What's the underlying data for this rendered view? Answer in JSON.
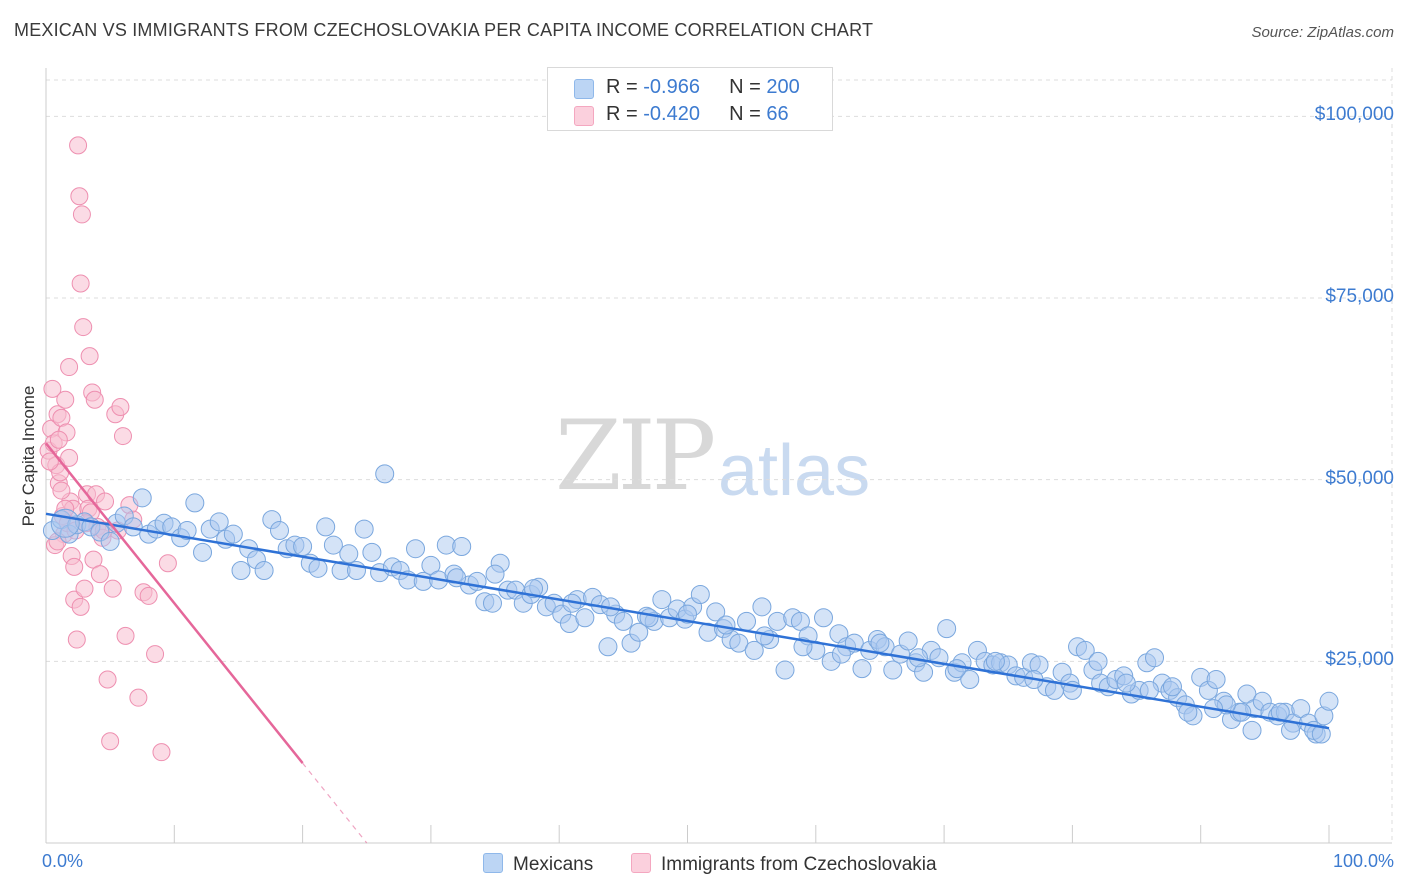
{
  "header": {
    "title": "MEXICAN VS IMMIGRANTS FROM CZECHOSLOVAKIA PER CAPITA INCOME CORRELATION CHART",
    "source": "Source: ZipAtlas.com"
  },
  "watermark": {
    "zip": "ZIP",
    "atlas": "atlas"
  },
  "legend": {
    "rows": [
      {
        "r_label": "R = ",
        "r_value": "-0.966",
        "n_label": "N = ",
        "n_value": "200",
        "color": "#8fb8ea"
      },
      {
        "r_label": "R = ",
        "r_value": "-0.420",
        "n_label": "N = ",
        "n_value": "66",
        "color": "#f4a7c0"
      }
    ]
  },
  "bottom_legend": {
    "mexicans": "Mexicans",
    "czech": "Immigrants from Czechoslovakia"
  },
  "colors": {
    "blue_fill": "#a9c8ef",
    "blue_stroke": "#7aa7de",
    "blue_line": "#2f72d6",
    "pink_fill": "#f7bdd0",
    "pink_stroke": "#ee8fb0",
    "pink_line": "#e5679a",
    "grid": "#dddddd",
    "tick_text": "#3d7bd0"
  },
  "chart_data": {
    "type": "scatter",
    "title": "MEXICAN VS IMMIGRANTS FROM CZECHOSLOVAKIA PER CAPITA INCOME CORRELATION CHART",
    "xlabel": "",
    "ylabel": "Per Capita Income",
    "xlim": [
      0,
      100
    ],
    "ylim": [
      0,
      105000
    ],
    "x_tick_labels": [
      "0.0%",
      "100.0%"
    ],
    "y_ticks": [
      25000,
      50000,
      75000,
      100000
    ],
    "y_tick_labels": [
      "$25,000",
      "$50,000",
      "$75,000",
      "$100,000"
    ],
    "grid": true,
    "series": [
      {
        "name": "Mexicans",
        "r": -0.966,
        "n": 200,
        "trend": {
          "x": [
            0,
            100
          ],
          "y": [
            45300,
            15800
          ]
        },
        "points": [
          [
            0.5,
            43000
          ],
          [
            1.2,
            44500
          ],
          [
            1.8,
            42500
          ],
          [
            2.4,
            43800
          ],
          [
            3.0,
            44200
          ],
          [
            3.5,
            43500
          ],
          [
            4.2,
            42800
          ],
          [
            5.0,
            41500
          ],
          [
            5.5,
            44000
          ],
          [
            6.1,
            45000
          ],
          [
            6.8,
            43500
          ],
          [
            7.5,
            47500
          ],
          [
            8.0,
            42500
          ],
          [
            8.6,
            43200
          ],
          [
            9.2,
            44000
          ],
          [
            9.8,
            43500
          ],
          [
            10.5,
            42000
          ],
          [
            11.0,
            43000
          ],
          [
            11.6,
            46800
          ],
          [
            12.2,
            40000
          ],
          [
            12.8,
            43200
          ],
          [
            13.5,
            44200
          ],
          [
            14.0,
            41800
          ],
          [
            14.6,
            42500
          ],
          [
            15.2,
            37500
          ],
          [
            15.8,
            40500
          ],
          [
            16.4,
            39000
          ],
          [
            17.0,
            37500
          ],
          [
            17.6,
            44500
          ],
          [
            18.2,
            43000
          ],
          [
            18.8,
            40500
          ],
          [
            19.4,
            41000
          ],
          [
            20.0,
            40800
          ],
          [
            20.6,
            38500
          ],
          [
            21.2,
            37800
          ],
          [
            21.8,
            43500
          ],
          [
            22.4,
            41000
          ],
          [
            23.0,
            37500
          ],
          [
            23.6,
            39800
          ],
          [
            24.2,
            37500
          ],
          [
            24.8,
            43200
          ],
          [
            25.4,
            40000
          ],
          [
            26.0,
            37200
          ],
          [
            26.4,
            50800
          ],
          [
            27.0,
            38000
          ],
          [
            27.6,
            37500
          ],
          [
            28.2,
            36200
          ],
          [
            28.8,
            40500
          ],
          [
            29.4,
            36000
          ],
          [
            30.0,
            38200
          ],
          [
            30.6,
            36200
          ],
          [
            31.2,
            41000
          ],
          [
            31.8,
            37000
          ],
          [
            32.4,
            40800
          ],
          [
            33.0,
            35500
          ],
          [
            33.6,
            36000
          ],
          [
            34.2,
            33200
          ],
          [
            34.8,
            33000
          ],
          [
            35.4,
            38500
          ],
          [
            36.0,
            34800
          ],
          [
            36.6,
            34800
          ],
          [
            37.2,
            33000
          ],
          [
            37.8,
            34200
          ],
          [
            38.4,
            35200
          ],
          [
            39.0,
            32500
          ],
          [
            39.6,
            33000
          ],
          [
            40.2,
            31500
          ],
          [
            40.8,
            30200
          ],
          [
            41.4,
            33500
          ],
          [
            42.0,
            31000
          ],
          [
            42.6,
            33800
          ],
          [
            43.2,
            32800
          ],
          [
            43.8,
            27000
          ],
          [
            44.4,
            31500
          ],
          [
            45.0,
            30500
          ],
          [
            45.6,
            27500
          ],
          [
            46.2,
            29000
          ],
          [
            46.8,
            31200
          ],
          [
            47.4,
            30500
          ],
          [
            48.0,
            33500
          ],
          [
            48.6,
            31000
          ],
          [
            49.2,
            32200
          ],
          [
            49.8,
            30800
          ],
          [
            50.4,
            32500
          ],
          [
            51.0,
            34200
          ],
          [
            51.6,
            29000
          ],
          [
            52.2,
            31800
          ],
          [
            52.8,
            29500
          ],
          [
            53.4,
            28000
          ],
          [
            54.0,
            27500
          ],
          [
            54.6,
            30500
          ],
          [
            55.2,
            26500
          ],
          [
            55.8,
            32500
          ],
          [
            56.4,
            28000
          ],
          [
            57.0,
            30500
          ],
          [
            57.6,
            23800
          ],
          [
            58.2,
            31000
          ],
          [
            58.8,
            30500
          ],
          [
            59.4,
            28500
          ],
          [
            60.0,
            26500
          ],
          [
            60.6,
            31000
          ],
          [
            61.2,
            25000
          ],
          [
            61.8,
            28800
          ],
          [
            62.4,
            27000
          ],
          [
            63.0,
            27500
          ],
          [
            63.6,
            24000
          ],
          [
            64.2,
            26500
          ],
          [
            64.8,
            28000
          ],
          [
            65.4,
            27000
          ],
          [
            66.0,
            23800
          ],
          [
            66.6,
            26000
          ],
          [
            67.2,
            27800
          ],
          [
            67.8,
            24800
          ],
          [
            68.4,
            23500
          ],
          [
            69.0,
            26500
          ],
          [
            69.6,
            25500
          ],
          [
            70.2,
            29500
          ],
          [
            70.8,
            23500
          ],
          [
            71.4,
            24800
          ],
          [
            72.0,
            22500
          ],
          [
            72.6,
            26500
          ],
          [
            73.2,
            25000
          ],
          [
            73.8,
            24500
          ],
          [
            74.4,
            24800
          ],
          [
            75.0,
            24500
          ],
          [
            75.6,
            23000
          ],
          [
            76.2,
            22800
          ],
          [
            76.8,
            24800
          ],
          [
            77.4,
            24500
          ],
          [
            78.0,
            21500
          ],
          [
            78.6,
            21000
          ],
          [
            79.2,
            23500
          ],
          [
            79.8,
            22000
          ],
          [
            80.4,
            27000
          ],
          [
            81.0,
            26500
          ],
          [
            81.6,
            23800
          ],
          [
            82.2,
            22000
          ],
          [
            82.8,
            21500
          ],
          [
            83.4,
            22500
          ],
          [
            84.0,
            23000
          ],
          [
            84.6,
            20500
          ],
          [
            85.2,
            21000
          ],
          [
            85.8,
            24800
          ],
          [
            86.4,
            25500
          ],
          [
            87.0,
            22000
          ],
          [
            87.6,
            21000
          ],
          [
            88.2,
            20000
          ],
          [
            88.8,
            19000
          ],
          [
            89.4,
            17500
          ],
          [
            90.0,
            22800
          ],
          [
            90.6,
            21000
          ],
          [
            91.2,
            22500
          ],
          [
            91.8,
            19500
          ],
          [
            92.4,
            17000
          ],
          [
            93.0,
            18000
          ],
          [
            93.6,
            20500
          ],
          [
            94.2,
            18500
          ],
          [
            94.8,
            19500
          ],
          [
            95.4,
            18000
          ],
          [
            96.0,
            17500
          ],
          [
            96.6,
            18000
          ],
          [
            97.2,
            16500
          ],
          [
            97.8,
            18500
          ],
          [
            98.4,
            16500
          ],
          [
            99.0,
            15000
          ],
          [
            99.6,
            17500
          ],
          [
            100.0,
            19500
          ],
          [
            98.8,
            15500
          ],
          [
            99.4,
            15000
          ],
          [
            97.0,
            15500
          ],
          [
            96.2,
            18000
          ],
          [
            94.0,
            15500
          ],
          [
            93.2,
            18000
          ],
          [
            92.0,
            19000
          ],
          [
            91.0,
            18500
          ],
          [
            89.0,
            18000
          ],
          [
            87.8,
            21500
          ],
          [
            86.0,
            21000
          ],
          [
            84.2,
            22000
          ],
          [
            82.0,
            25000
          ],
          [
            80.0,
            21000
          ],
          [
            77.0,
            22500
          ],
          [
            74.0,
            25000
          ],
          [
            71.0,
            24000
          ],
          [
            68.0,
            25500
          ],
          [
            65.0,
            27500
          ],
          [
            62.0,
            26000
          ],
          [
            59.0,
            27000
          ],
          [
            56.0,
            28500
          ],
          [
            53.0,
            30000
          ],
          [
            50.0,
            31500
          ],
          [
            47.0,
            31000
          ],
          [
            44.0,
            32500
          ],
          [
            41.0,
            33000
          ],
          [
            38.0,
            35000
          ],
          [
            35.0,
            37000
          ],
          [
            32.0,
            36500
          ]
        ]
      },
      {
        "name": "Immigrants from Czechoslovakia",
        "r": -0.42,
        "n": 66,
        "trend": {
          "x": [
            0,
            20
          ],
          "y": [
            55000,
            11000
          ],
          "dashed_to": [
            25,
            0
          ]
        },
        "points": [
          [
            0.2,
            54000
          ],
          [
            0.4,
            57000
          ],
          [
            0.5,
            62500
          ],
          [
            0.6,
            55000
          ],
          [
            0.8,
            52000
          ],
          [
            0.9,
            59000
          ],
          [
            1.0,
            49500
          ],
          [
            1.1,
            51000
          ],
          [
            1.2,
            58500
          ],
          [
            1.3,
            45000
          ],
          [
            1.4,
            42500
          ],
          [
            1.5,
            61000
          ],
          [
            1.6,
            56500
          ],
          [
            1.7,
            44000
          ],
          [
            1.8,
            53000
          ],
          [
            1.9,
            47000
          ],
          [
            2.0,
            39500
          ],
          [
            2.1,
            46000
          ],
          [
            2.2,
            33500
          ],
          [
            2.3,
            43000
          ],
          [
            2.4,
            28000
          ],
          [
            2.5,
            96000
          ],
          [
            2.6,
            89000
          ],
          [
            2.7,
            77000
          ],
          [
            2.8,
            86500
          ],
          [
            2.9,
            71000
          ],
          [
            3.0,
            35000
          ],
          [
            3.2,
            48000
          ],
          [
            3.3,
            46000
          ],
          [
            3.4,
            67000
          ],
          [
            3.5,
            45500
          ],
          [
            3.6,
            62000
          ],
          [
            3.7,
            39000
          ],
          [
            3.8,
            61000
          ],
          [
            3.9,
            48000
          ],
          [
            4.0,
            43500
          ],
          [
            4.2,
            37000
          ],
          [
            4.4,
            42000
          ],
          [
            4.6,
            47000
          ],
          [
            4.8,
            22500
          ],
          [
            5.0,
            14000
          ],
          [
            5.2,
            35000
          ],
          [
            5.4,
            59000
          ],
          [
            5.6,
            43000
          ],
          [
            5.8,
            60000
          ],
          [
            6.0,
            56000
          ],
          [
            6.2,
            28500
          ],
          [
            6.5,
            46500
          ],
          [
            6.8,
            44500
          ],
          [
            7.2,
            20000
          ],
          [
            7.6,
            34500
          ],
          [
            8.0,
            34000
          ],
          [
            8.5,
            26000
          ],
          [
            9.0,
            12500
          ],
          [
            9.5,
            38500
          ],
          [
            1.0,
            55500
          ],
          [
            0.7,
            41000
          ],
          [
            1.8,
            65500
          ],
          [
            2.7,
            32500
          ],
          [
            0.3,
            52500
          ],
          [
            1.5,
            46000
          ],
          [
            2.2,
            38000
          ],
          [
            0.9,
            41500
          ],
          [
            3.1,
            44000
          ],
          [
            1.2,
            48500
          ],
          [
            4.5,
            43000
          ]
        ]
      }
    ]
  }
}
